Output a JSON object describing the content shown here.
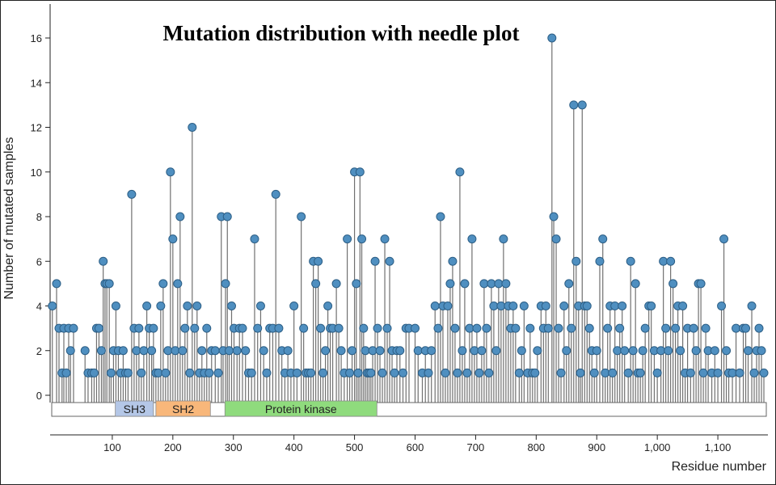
{
  "chart_data": {
    "type": "lollipop",
    "title": "Mutation distribution with needle plot",
    "ylabel": "Number of mutated samples",
    "xlabel": "Residue number",
    "xlim": [
      0,
      1180
    ],
    "ylim": [
      0,
      16.8
    ],
    "x_ticks": [
      {
        "value": 100,
        "label": "100"
      },
      {
        "value": 200,
        "label": "200"
      },
      {
        "value": 300,
        "label": "300"
      },
      {
        "value": 400,
        "label": "400"
      },
      {
        "value": 500,
        "label": "500"
      },
      {
        "value": 600,
        "label": "600"
      },
      {
        "value": 700,
        "label": "700"
      },
      {
        "value": 800,
        "label": "800"
      },
      {
        "value": 900,
        "label": "900"
      },
      {
        "value": 1000,
        "label": "1,000"
      },
      {
        "value": 1100,
        "label": "1,100"
      }
    ],
    "y_ticks": [
      {
        "value": 0,
        "label": "0"
      },
      {
        "value": 2,
        "label": "2"
      },
      {
        "value": 4,
        "label": "4"
      },
      {
        "value": 6,
        "label": "6"
      },
      {
        "value": 8,
        "label": "8"
      },
      {
        "value": 10,
        "label": "10"
      },
      {
        "value": 12,
        "label": "12"
      },
      {
        "value": 14,
        "label": "14"
      },
      {
        "value": 16,
        "label": "16"
      }
    ],
    "domains": [
      {
        "name": "SH3",
        "start": 105,
        "end": 168,
        "color": "#b4c7e7"
      },
      {
        "name": "SH2",
        "start": 172,
        "end": 262,
        "color": "#f8b77a"
      },
      {
        "name": "Protein kinase",
        "start": 286,
        "end": 537,
        "color": "#8fdb7d"
      }
    ],
    "points": [
      [
        1,
        4
      ],
      [
        8,
        5
      ],
      [
        12,
        3
      ],
      [
        17,
        1
      ],
      [
        20,
        3
      ],
      [
        24,
        1
      ],
      [
        28,
        3
      ],
      [
        31,
        2
      ],
      [
        36,
        3
      ],
      [
        55,
        2
      ],
      [
        60,
        1
      ],
      [
        66,
        1
      ],
      [
        70,
        1
      ],
      [
        74,
        3
      ],
      [
        78,
        3
      ],
      [
        82,
        2
      ],
      [
        85,
        6
      ],
      [
        88,
        5
      ],
      [
        91,
        5
      ],
      [
        95,
        5
      ],
      [
        98,
        1
      ],
      [
        102,
        2
      ],
      [
        106,
        4
      ],
      [
        110,
        2
      ],
      [
        114,
        1
      ],
      [
        118,
        2
      ],
      [
        122,
        1
      ],
      [
        126,
        1
      ],
      [
        132,
        9
      ],
      [
        136,
        3
      ],
      [
        140,
        2
      ],
      [
        144,
        3
      ],
      [
        148,
        1
      ],
      [
        152,
        2
      ],
      [
        157,
        4
      ],
      [
        161,
        3
      ],
      [
        165,
        2
      ],
      [
        168,
        3
      ],
      [
        172,
        1
      ],
      [
        176,
        1
      ],
      [
        180,
        4
      ],
      [
        184,
        5
      ],
      [
        188,
        1
      ],
      [
        192,
        2
      ],
      [
        196,
        10
      ],
      [
        200,
        7
      ],
      [
        204,
        2
      ],
      [
        208,
        5
      ],
      [
        212,
        8
      ],
      [
        216,
        2
      ],
      [
        220,
        3
      ],
      [
        224,
        4
      ],
      [
        228,
        1
      ],
      [
        232,
        12
      ],
      [
        236,
        3
      ],
      [
        240,
        4
      ],
      [
        244,
        1
      ],
      [
        248,
        2
      ],
      [
        252,
        1
      ],
      [
        256,
        3
      ],
      [
        260,
        1
      ],
      [
        264,
        2
      ],
      [
        270,
        2
      ],
      [
        275,
        1
      ],
      [
        280,
        8
      ],
      [
        283,
        2
      ],
      [
        287,
        5
      ],
      [
        290,
        8
      ],
      [
        293,
        2
      ],
      [
        297,
        4
      ],
      [
        301,
        3
      ],
      [
        306,
        2
      ],
      [
        310,
        3
      ],
      [
        315,
        3
      ],
      [
        320,
        2
      ],
      [
        325,
        1
      ],
      [
        330,
        1
      ],
      [
        335,
        7
      ],
      [
        340,
        3
      ],
      [
        345,
        4
      ],
      [
        350,
        2
      ],
      [
        355,
        1
      ],
      [
        360,
        3
      ],
      [
        365,
        3
      ],
      [
        370,
        9
      ],
      [
        375,
        3
      ],
      [
        380,
        2
      ],
      [
        385,
        1
      ],
      [
        390,
        2
      ],
      [
        395,
        1
      ],
      [
        400,
        4
      ],
      [
        405,
        1
      ],
      [
        412,
        8
      ],
      [
        416,
        3
      ],
      [
        420,
        1
      ],
      [
        424,
        1
      ],
      [
        428,
        1
      ],
      [
        432,
        6
      ],
      [
        436,
        5
      ],
      [
        440,
        6
      ],
      [
        444,
        3
      ],
      [
        448,
        1
      ],
      [
        452,
        2
      ],
      [
        456,
        4
      ],
      [
        460,
        3
      ],
      [
        464,
        3
      ],
      [
        470,
        5
      ],
      [
        474,
        3
      ],
      [
        478,
        2
      ],
      [
        483,
        1
      ],
      [
        488,
        7
      ],
      [
        492,
        1
      ],
      [
        496,
        2
      ],
      [
        500,
        10
      ],
      [
        503,
        5
      ],
      [
        506,
        1
      ],
      [
        509,
        10
      ],
      [
        512,
        7
      ],
      [
        515,
        3
      ],
      [
        518,
        2
      ],
      [
        521,
        1
      ],
      [
        524,
        1
      ],
      [
        527,
        1
      ],
      [
        530,
        2
      ],
      [
        534,
        6
      ],
      [
        538,
        3
      ],
      [
        542,
        2
      ],
      [
        546,
        1
      ],
      [
        550,
        7
      ],
      [
        554,
        3
      ],
      [
        558,
        6
      ],
      [
        562,
        2
      ],
      [
        566,
        1
      ],
      [
        570,
        2
      ],
      [
        575,
        2
      ],
      [
        580,
        1
      ],
      [
        585,
        3
      ],
      [
        590,
        3
      ],
      [
        600,
        3
      ],
      [
        605,
        2
      ],
      [
        612,
        1
      ],
      [
        617,
        2
      ],
      [
        622,
        1
      ],
      [
        627,
        2
      ],
      [
        633,
        4
      ],
      [
        638,
        3
      ],
      [
        642,
        8
      ],
      [
        646,
        4
      ],
      [
        650,
        1
      ],
      [
        654,
        4
      ],
      [
        658,
        5
      ],
      [
        662,
        6
      ],
      [
        666,
        3
      ],
      [
        670,
        1
      ],
      [
        674,
        10
      ],
      [
        678,
        2
      ],
      [
        682,
        5
      ],
      [
        686,
        1
      ],
      [
        690,
        3
      ],
      [
        694,
        7
      ],
      [
        698,
        2
      ],
      [
        702,
        3
      ],
      [
        706,
        1
      ],
      [
        710,
        2
      ],
      [
        714,
        5
      ],
      [
        718,
        3
      ],
      [
        722,
        1
      ],
      [
        726,
        5
      ],
      [
        730,
        4
      ],
      [
        734,
        2
      ],
      [
        738,
        5
      ],
      [
        742,
        4
      ],
      [
        746,
        7
      ],
      [
        750,
        5
      ],
      [
        754,
        4
      ],
      [
        758,
        3
      ],
      [
        762,
        4
      ],
      [
        766,
        3
      ],
      [
        772,
        1
      ],
      [
        776,
        2
      ],
      [
        780,
        4
      ],
      [
        786,
        1
      ],
      [
        790,
        3
      ],
      [
        794,
        1
      ],
      [
        798,
        1
      ],
      [
        802,
        2
      ],
      [
        808,
        4
      ],
      [
        812,
        3
      ],
      [
        816,
        4
      ],
      [
        820,
        3
      ],
      [
        826,
        16
      ],
      [
        829,
        8
      ],
      [
        833,
        7
      ],
      [
        837,
        3
      ],
      [
        841,
        1
      ],
      [
        846,
        4
      ],
      [
        850,
        2
      ],
      [
        854,
        5
      ],
      [
        858,
        3
      ],
      [
        862,
        13
      ],
      [
        866,
        6
      ],
      [
        870,
        4
      ],
      [
        873,
        1
      ],
      [
        876,
        13
      ],
      [
        880,
        4
      ],
      [
        884,
        4
      ],
      [
        888,
        3
      ],
      [
        892,
        2
      ],
      [
        896,
        1
      ],
      [
        900,
        2
      ],
      [
        905,
        6
      ],
      [
        910,
        7
      ],
      [
        914,
        1
      ],
      [
        918,
        3
      ],
      [
        922,
        4
      ],
      [
        926,
        1
      ],
      [
        930,
        4
      ],
      [
        934,
        2
      ],
      [
        938,
        3
      ],
      [
        942,
        4
      ],
      [
        946,
        2
      ],
      [
        952,
        1
      ],
      [
        956,
        6
      ],
      [
        960,
        2
      ],
      [
        964,
        5
      ],
      [
        968,
        1
      ],
      [
        972,
        1
      ],
      [
        976,
        2
      ],
      [
        980,
        3
      ],
      [
        986,
        4
      ],
      [
        990,
        4
      ],
      [
        995,
        2
      ],
      [
        1000,
        1
      ],
      [
        1006,
        2
      ],
      [
        1010,
        6
      ],
      [
        1014,
        3
      ],
      [
        1018,
        2
      ],
      [
        1022,
        6
      ],
      [
        1026,
        5
      ],
      [
        1030,
        3
      ],
      [
        1034,
        4
      ],
      [
        1038,
        2
      ],
      [
        1042,
        4
      ],
      [
        1046,
        1
      ],
      [
        1050,
        3
      ],
      [
        1055,
        1
      ],
      [
        1060,
        3
      ],
      [
        1064,
        2
      ],
      [
        1068,
        5
      ],
      [
        1072,
        5
      ],
      [
        1076,
        1
      ],
      [
        1080,
        3
      ],
      [
        1084,
        2
      ],
      [
        1090,
        1
      ],
      [
        1095,
        2
      ],
      [
        1100,
        1
      ],
      [
        1106,
        4
      ],
      [
        1110,
        7
      ],
      [
        1114,
        2
      ],
      [
        1118,
        1
      ],
      [
        1124,
        1
      ],
      [
        1130,
        3
      ],
      [
        1136,
        1
      ],
      [
        1142,
        3
      ],
      [
        1146,
        3
      ],
      [
        1150,
        2
      ],
      [
        1156,
        4
      ],
      [
        1160,
        1
      ],
      [
        1164,
        2
      ],
      [
        1168,
        3
      ],
      [
        1172,
        2
      ],
      [
        1176,
        1
      ]
    ]
  }
}
